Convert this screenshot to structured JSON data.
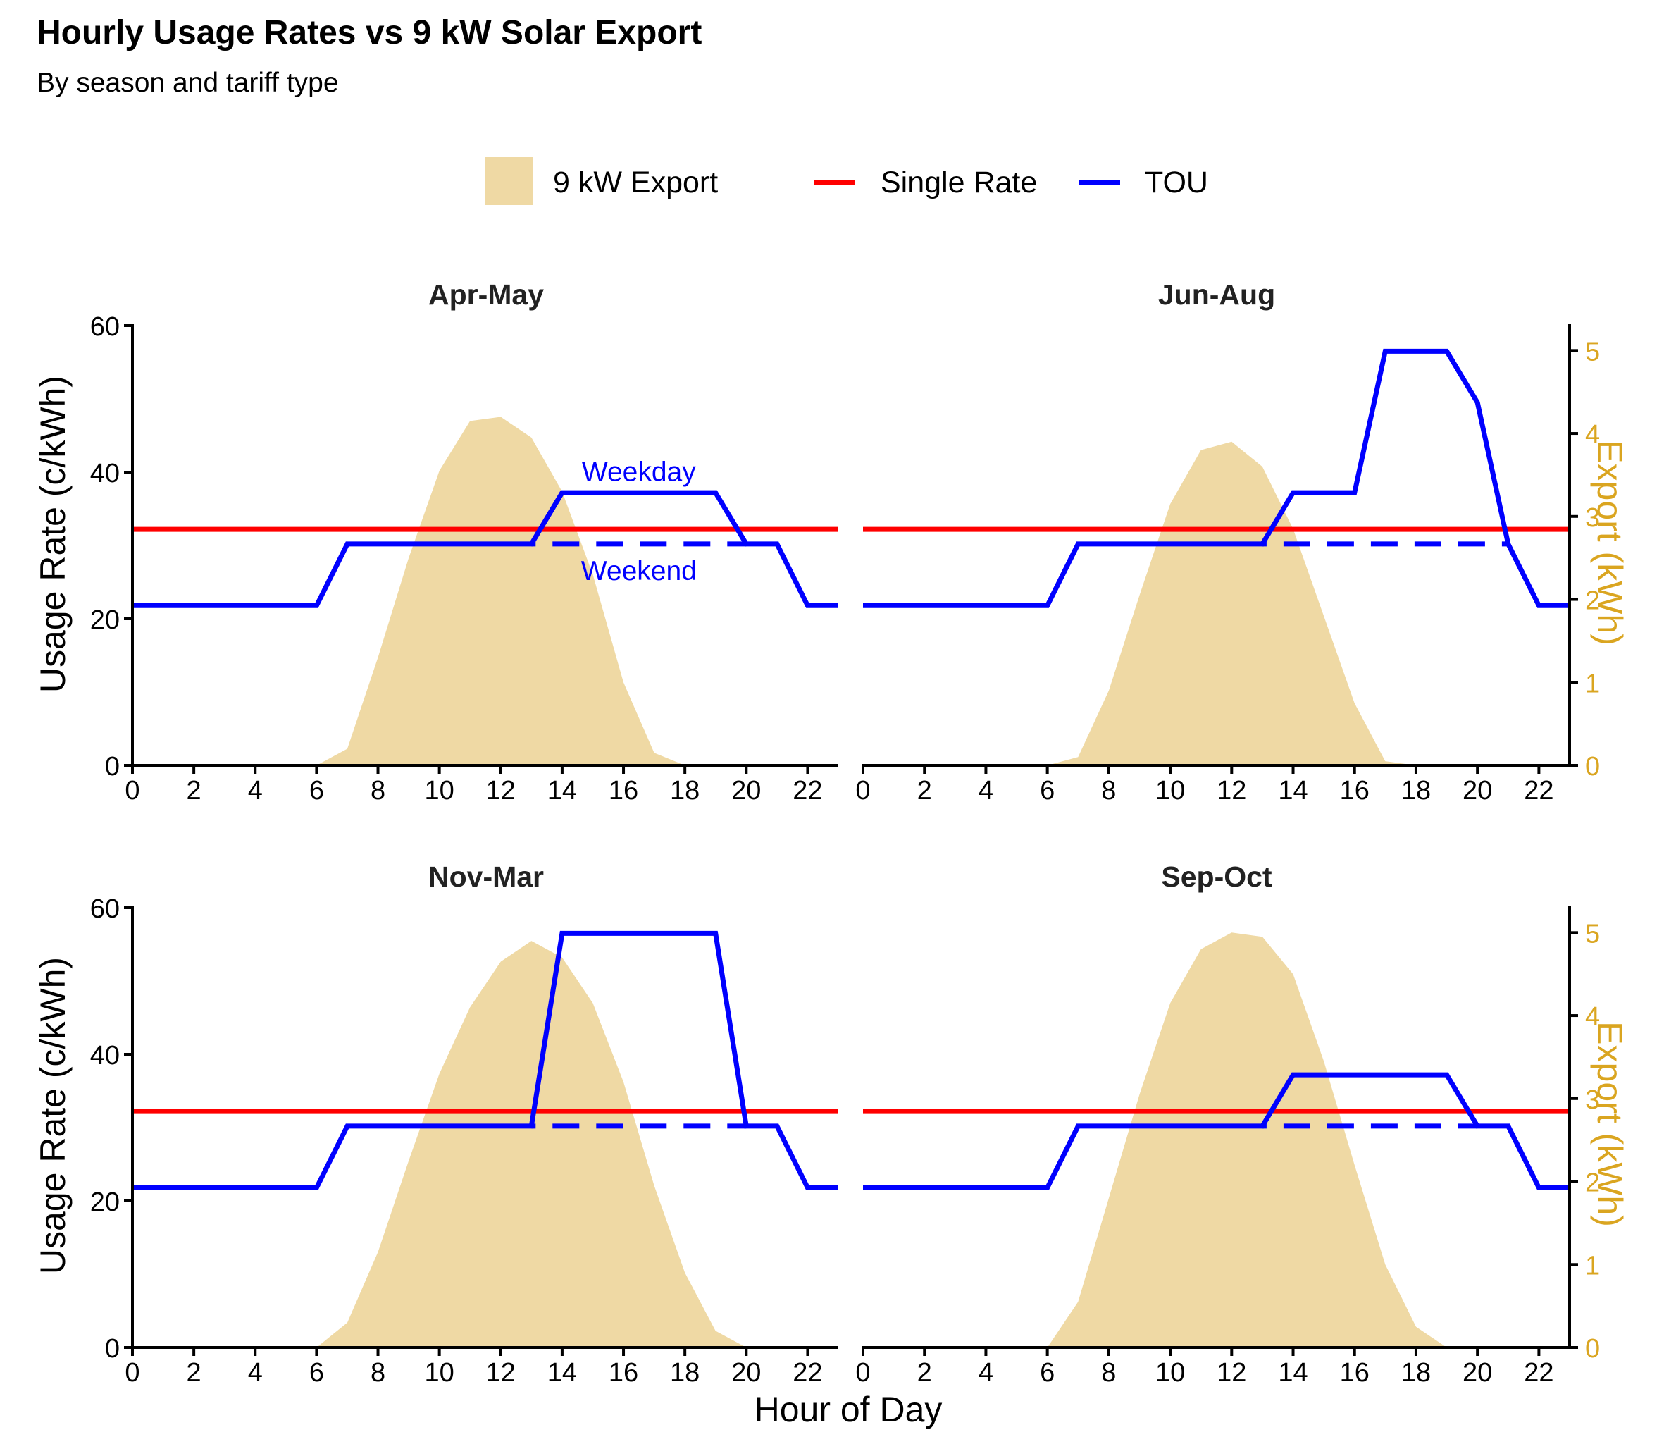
{
  "title": "Hourly Usage Rates vs 9 kW Solar Export",
  "subtitle": "By season and tariff type",
  "colors": {
    "export_fill": "#EFD9A4",
    "single_rate": "#FF0000",
    "tou": "#0000FF",
    "right_axis": "#DAA520"
  },
  "legend": {
    "placement": "top",
    "items": [
      {
        "label": "9 kW Export",
        "kind": "area",
        "color": "#EFD9A4"
      },
      {
        "label": "Single Rate",
        "kind": "line",
        "color": "#FF0000"
      },
      {
        "label": "TOU",
        "kind": "line",
        "color": "#0000FF"
      }
    ]
  },
  "axes": {
    "x_label": "Hour of Day",
    "y_label": "Usage Rate (c/kWh)",
    "y2_label": "Export (kWh)",
    "x_ticks": [
      "0",
      "2",
      "4",
      "6",
      "8",
      "10",
      "12",
      "14",
      "16",
      "18",
      "20",
      "22"
    ],
    "y_ticks": [
      "0",
      "20",
      "40",
      "60"
    ],
    "y2_ticks": [
      "0",
      "1",
      "2",
      "3",
      "4",
      "5"
    ]
  },
  "annotations": {
    "weekday": "Weekday",
    "weekend": "Weekend"
  },
  "chart_data": {
    "type": "line",
    "x_range": [
      0,
      23
    ],
    "y_range": [
      0,
      60
    ],
    "y2_range": [
      0,
      5.3
    ],
    "single_rate": 32.2,
    "panels": [
      {
        "title": "Apr-May",
        "tou_weekday": [
          21.8,
          21.8,
          21.8,
          21.8,
          21.8,
          21.8,
          21.8,
          30.2,
          30.2,
          30.2,
          30.2,
          30.2,
          30.2,
          30.2,
          37.2,
          37.2,
          37.2,
          37.2,
          37.2,
          37.2,
          30.2,
          30.2,
          21.8,
          21.8
        ],
        "tou_weekend": [
          21.8,
          21.8,
          21.8,
          21.8,
          21.8,
          21.8,
          21.8,
          30.2,
          30.2,
          30.2,
          30.2,
          30.2,
          30.2,
          30.2,
          30.2,
          30.2,
          30.2,
          30.2,
          30.2,
          30.2,
          30.2,
          30.2,
          21.8,
          21.8
        ],
        "export_kwh": [
          0,
          0,
          0,
          0,
          0,
          0,
          0,
          0.2,
          1.3,
          2.5,
          3.55,
          4.15,
          4.2,
          3.95,
          3.3,
          2.3,
          1,
          0.15,
          0,
          0,
          0,
          0,
          0,
          0
        ]
      },
      {
        "title": "Jun-Aug",
        "tou_weekday": [
          21.8,
          21.8,
          21.8,
          21.8,
          21.8,
          21.8,
          21.8,
          30.2,
          30.2,
          30.2,
          30.2,
          30.2,
          30.2,
          30.2,
          37.2,
          37.2,
          37.2,
          56.5,
          56.5,
          56.5,
          49.5,
          30.2,
          21.8,
          21.8
        ],
        "tou_weekend": [
          21.8,
          21.8,
          21.8,
          21.8,
          21.8,
          21.8,
          21.8,
          30.2,
          30.2,
          30.2,
          30.2,
          30.2,
          30.2,
          30.2,
          30.2,
          30.2,
          30.2,
          30.2,
          30.2,
          30.2,
          30.2,
          30.2,
          21.8,
          21.8
        ],
        "export_kwh": [
          0,
          0,
          0,
          0,
          0,
          0,
          0,
          0.1,
          0.9,
          2.05,
          3.15,
          3.8,
          3.9,
          3.6,
          2.85,
          1.8,
          0.75,
          0.05,
          0,
          0,
          0,
          0,
          0,
          0
        ]
      },
      {
        "title": "Nov-Mar",
        "tou_weekday": [
          21.8,
          21.8,
          21.8,
          21.8,
          21.8,
          21.8,
          21.8,
          30.2,
          30.2,
          30.2,
          30.2,
          30.2,
          30.2,
          30.2,
          56.5,
          56.5,
          56.5,
          56.5,
          56.5,
          56.5,
          30.2,
          30.2,
          21.8,
          21.8
        ],
        "tou_weekend": [
          21.8,
          21.8,
          21.8,
          21.8,
          21.8,
          21.8,
          21.8,
          30.2,
          30.2,
          30.2,
          30.2,
          30.2,
          30.2,
          30.2,
          30.2,
          30.2,
          30.2,
          30.2,
          30.2,
          30.2,
          30.2,
          30.2,
          21.8,
          21.8
        ],
        "export_kwh": [
          0,
          0,
          0,
          0,
          0,
          0,
          0,
          0.3,
          1.15,
          2.25,
          3.3,
          4.1,
          4.65,
          4.9,
          4.7,
          4.15,
          3.2,
          1.95,
          0.9,
          0.2,
          0,
          0,
          0,
          0
        ]
      },
      {
        "title": "Sep-Oct",
        "tou_weekday": [
          21.8,
          21.8,
          21.8,
          21.8,
          21.8,
          21.8,
          21.8,
          30.2,
          30.2,
          30.2,
          30.2,
          30.2,
          30.2,
          30.2,
          37.2,
          37.2,
          37.2,
          37.2,
          37.2,
          37.2,
          30.2,
          30.2,
          21.8,
          21.8
        ],
        "tou_weekend": [
          21.8,
          21.8,
          21.8,
          21.8,
          21.8,
          21.8,
          21.8,
          30.2,
          30.2,
          30.2,
          30.2,
          30.2,
          30.2,
          30.2,
          30.2,
          30.2,
          30.2,
          30.2,
          30.2,
          30.2,
          30.2,
          30.2,
          21.8,
          21.8
        ],
        "export_kwh": [
          0,
          0,
          0,
          0,
          0,
          0,
          0,
          0.55,
          1.8,
          3.05,
          4.15,
          4.8,
          5,
          4.95,
          4.5,
          3.45,
          2.2,
          1,
          0.25,
          0,
          0,
          0,
          0,
          0
        ]
      }
    ]
  }
}
